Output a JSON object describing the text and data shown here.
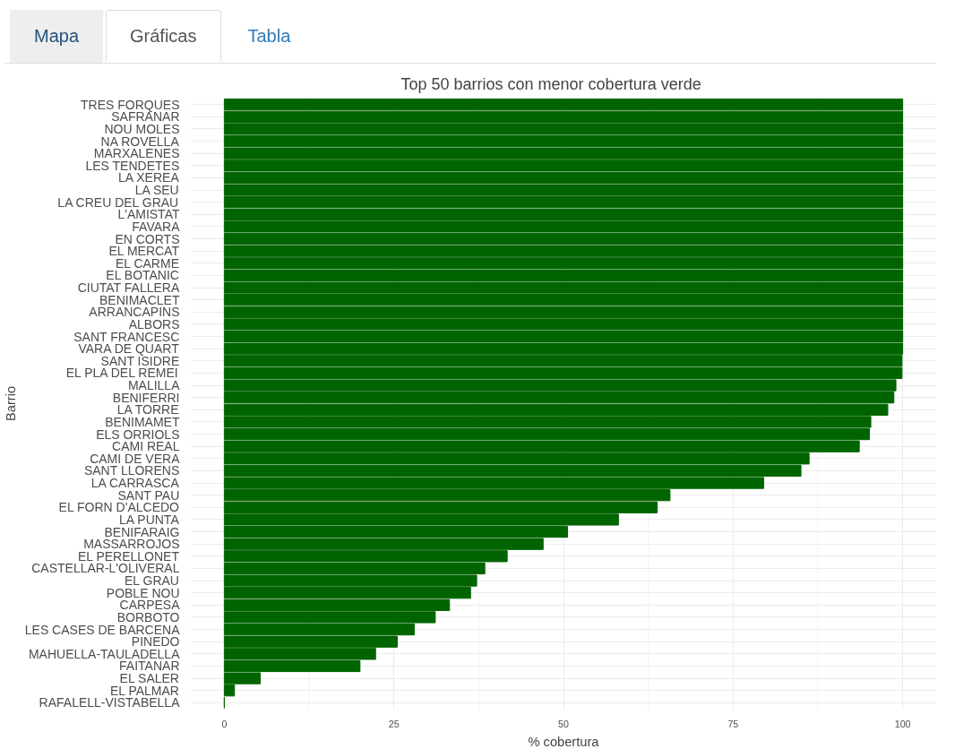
{
  "chart_data": {
    "type": "bar",
    "orientation": "horizontal",
    "title": "Top 50 barrios con menor cobertura verde",
    "xlabel": "% cobertura",
    "ylabel": "Barrio",
    "annotations": [
      "Mapa",
      "Gráficas",
      "Tabla"
    ],
    "categories": [
      "TRES FORQUES",
      "SAFRANAR",
      "NOU MOLES",
      "NA ROVELLA",
      "MARXALENES",
      "LES TENDETES",
      "LA XEREA",
      "LA SEU",
      "LA CREU DEL GRAU",
      "L'AMISTAT",
      "FAVARA",
      "EN CORTS",
      "EL MERCAT",
      "EL CARME",
      "EL BOTANIC",
      "CIUTAT FALLERA",
      "BENIMACLET",
      "ARRANCAPINS",
      "ALBORS",
      "SANT FRANCESC",
      "VARA DE QUART",
      "SANT ISIDRE",
      "EL PLA DEL REMEI",
      "MALILLA",
      "BENIFERRI",
      "LA TORRE",
      "BENIMAMET",
      "ELS ORRIOLS",
      "CAMI REAL",
      "CAMI DE VERA",
      "SANT LLORENS",
      "LA CARRASCA",
      "SANT PAU",
      "EL FORN D'ALCEDO",
      "LA PUNTA",
      "BENIFARAIG",
      "MASSARROJOS",
      "EL PERELLONET",
      "CASTELLAR-L'OLIVERAL",
      "EL GRAU",
      "POBLE NOU",
      "CARPESA",
      "BORBOTO",
      "LES CASES DE BARCENA",
      "PINEDO",
      "MAHUELLA-TAULADELLA",
      "FAITANAR",
      "EL SALER",
      "EL PALMAR",
      "RAFALELL-VISTABELLA"
    ],
    "values": [
      100,
      100,
      100,
      100,
      100,
      100,
      100,
      100,
      100,
      100,
      100,
      100,
      100,
      100,
      100,
      100,
      100,
      100,
      100,
      100,
      100,
      99.9,
      99.9,
      99.0,
      98.7,
      97.8,
      95.3,
      95.1,
      93.6,
      86.2,
      85.0,
      79.5,
      65.7,
      63.8,
      58.1,
      50.6,
      47.0,
      41.7,
      38.4,
      37.2,
      36.3,
      33.2,
      31.1,
      28.0,
      25.5,
      22.3,
      20.0,
      5.3,
      1.5,
      0
    ],
    "color": "#006400",
    "xlim": [
      -5,
      105
    ],
    "xticks": [
      0,
      25,
      50,
      75,
      100
    ],
    "grid": true
  }
}
